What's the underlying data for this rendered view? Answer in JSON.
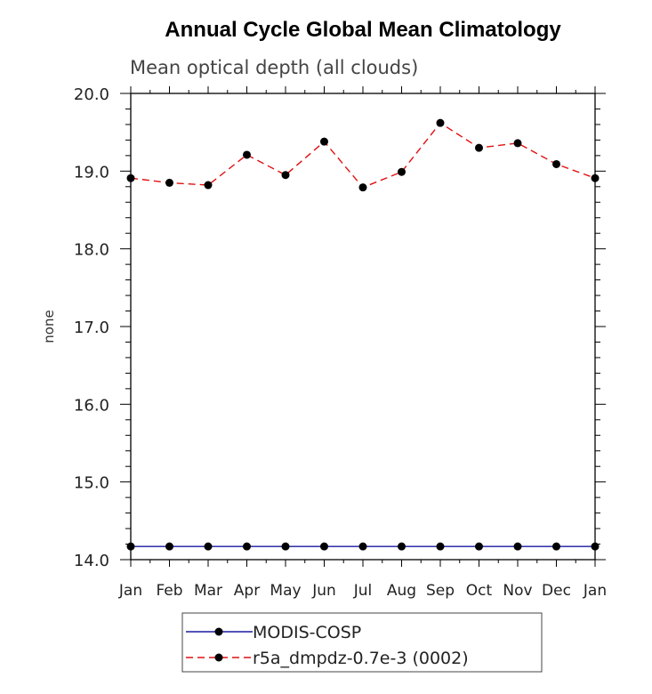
{
  "chart_data": {
    "type": "line",
    "title": "Annual Cycle Global Mean Climatology",
    "subtitle": "Mean optical depth (all clouds)",
    "xlabel": "",
    "ylabel": "none",
    "categories": [
      "Jan",
      "Feb",
      "Mar",
      "Apr",
      "May",
      "Jun",
      "Jul",
      "Aug",
      "Sep",
      "Oct",
      "Nov",
      "Dec",
      "Jan"
    ],
    "ylim": [
      14.0,
      20.0
    ],
    "yticks": [
      14.0,
      15.0,
      16.0,
      17.0,
      18.0,
      19.0,
      20.0
    ],
    "ytick_labels": [
      "14.0",
      "15.0",
      "16.0",
      "17.0",
      "18.0",
      "19.0",
      "20.0"
    ],
    "grid": false,
    "legend_position": "bottom-center",
    "series": [
      {
        "name": "MODIS-COSP",
        "color": "#1a1aa0",
        "dash": "solid",
        "values": [
          14.17,
          14.17,
          14.17,
          14.17,
          14.17,
          14.17,
          14.17,
          14.17,
          14.17,
          14.17,
          14.17,
          14.17,
          14.17
        ]
      },
      {
        "name": "r5a_dmpdz-0.7e-3 (0002)",
        "color": "#e01010",
        "dash": "dashed",
        "values": [
          18.91,
          18.85,
          18.82,
          19.21,
          18.95,
          19.38,
          18.79,
          18.99,
          19.62,
          19.3,
          19.36,
          19.09,
          18.91
        ]
      }
    ]
  }
}
